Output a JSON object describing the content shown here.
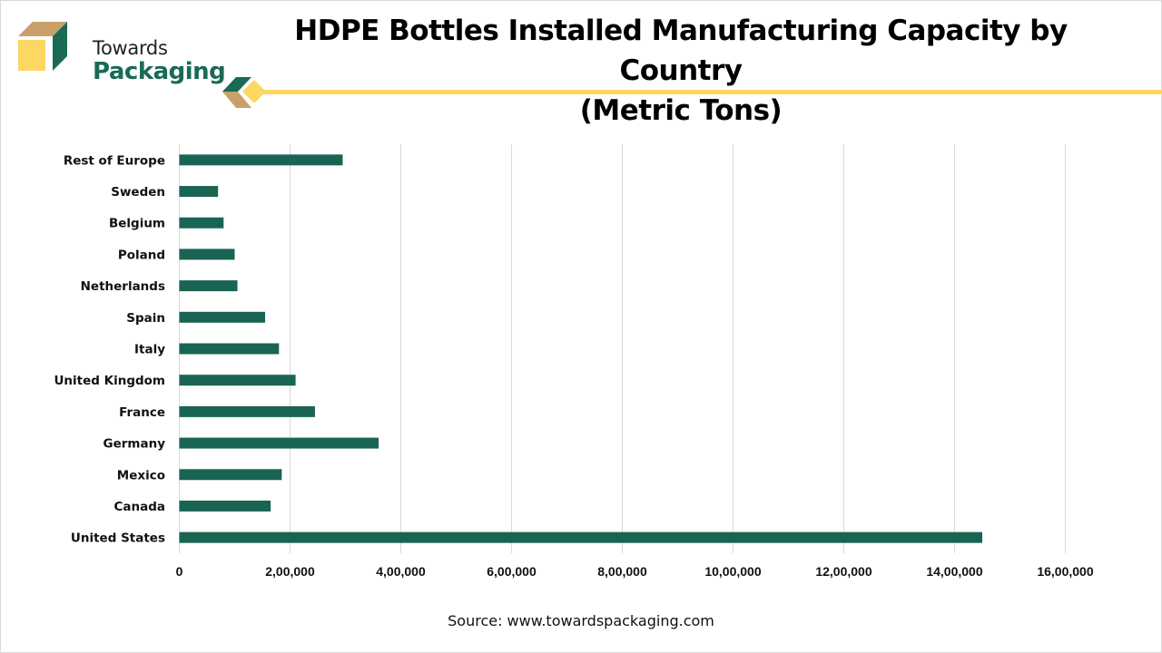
{
  "brand": {
    "line1": "Towards",
    "line2": "Packaging",
    "colors": {
      "green": "#1a6a55",
      "tan": "#c9a06a",
      "yellow": "#fcd762"
    }
  },
  "title_line1": "HDPE Bottles Installed Manufacturing Capacity by Country",
  "title_line2": "(Metric Tons)",
  "source": "Source: www.towardspackaging.com",
  "chart_data": {
    "type": "bar",
    "orientation": "horizontal",
    "title": "HDPE Bottles Installed Manufacturing Capacity by Country (Metric Tons)",
    "xlabel": "",
    "ylabel": "",
    "categories": [
      "Rest of Europe",
      "Sweden",
      "Belgium",
      "Poland",
      "Netherlands",
      "Spain",
      "Italy",
      "United Kingdom",
      "France",
      "Germany",
      "Mexico",
      "Canada",
      "United States"
    ],
    "values": [
      295000,
      70000,
      80000,
      100000,
      105000,
      155000,
      180000,
      210000,
      245000,
      360000,
      185000,
      165000,
      1450000
    ],
    "xlim": [
      0,
      1600000
    ],
    "xticks": [
      0,
      200000,
      400000,
      600000,
      800000,
      1000000,
      1200000,
      1400000,
      1600000
    ],
    "xtick_labels": [
      "0",
      "2,00,000",
      "4,00,000",
      "6,00,000",
      "8,00,000",
      "10,00,000",
      "12,00,000",
      "14,00,000",
      "16,00,000"
    ],
    "grid": true,
    "legend": "none",
    "bar_color": "#1a6454",
    "grid_color": "#d9d9d9"
  }
}
